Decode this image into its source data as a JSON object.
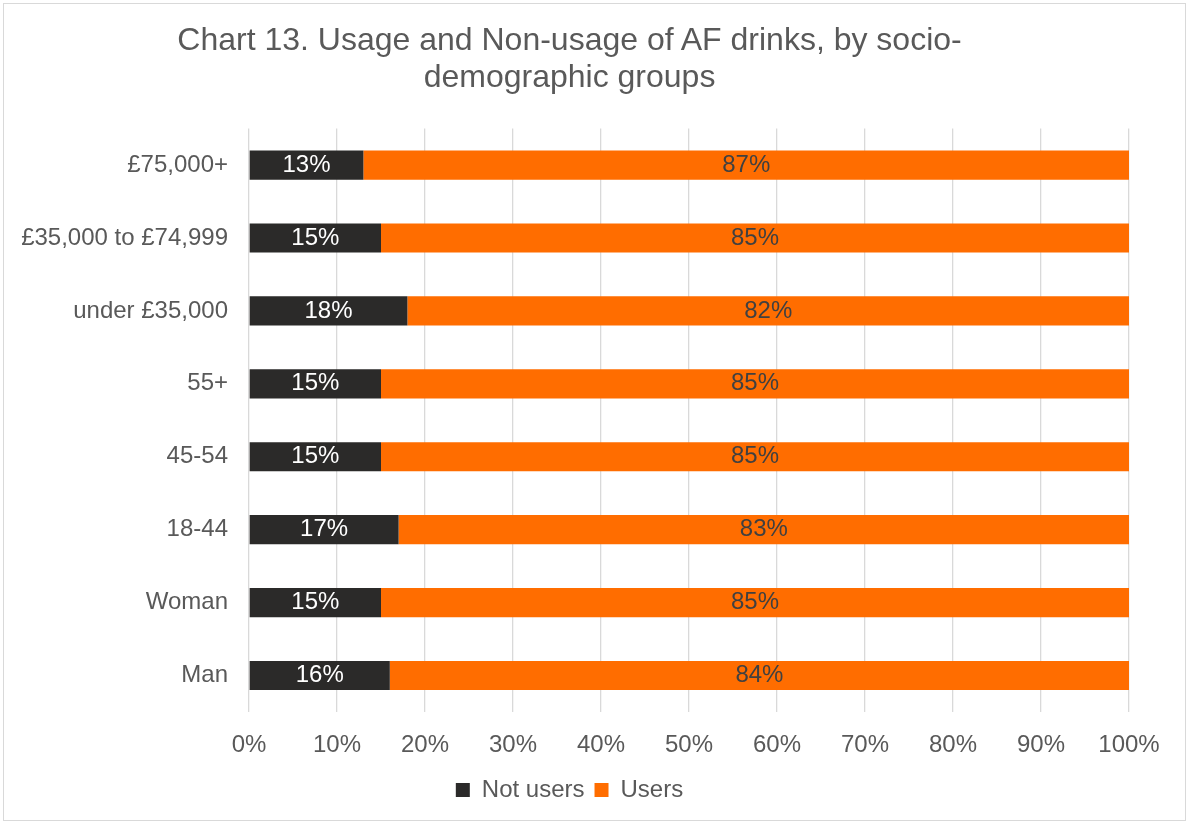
{
  "chart_data": {
    "type": "bar",
    "title": "Chart 13. Usage and Non-usage of AF drinks, by socio-demographic groups",
    "orientation": "horizontal",
    "stacked": true,
    "categories": [
      "£75,000+",
      "£35,000 to £74,999",
      "under £35,000",
      "55+",
      "45-54",
      "18-44",
      "Woman",
      "Man"
    ],
    "series": [
      {
        "name": "Not users",
        "color": "#2b2a29",
        "values": [
          13,
          15,
          18,
          15,
          15,
          17,
          15,
          16
        ],
        "value_labels": [
          "13%",
          "15%",
          "18%",
          "15%",
          "15%",
          "17%",
          "15%",
          "16%"
        ]
      },
      {
        "name": "Users",
        "color": "#ff6d00",
        "values": [
          87,
          85,
          82,
          85,
          85,
          83,
          85,
          84
        ],
        "value_labels": [
          "87%",
          "85%",
          "82%",
          "85%",
          "85%",
          "83%",
          "85%",
          "84%"
        ]
      }
    ],
    "xlim": [
      0,
      100
    ],
    "xticks": [
      {
        "value": 0,
        "label": "0%"
      },
      {
        "value": 10,
        "label": "10%"
      },
      {
        "value": 20,
        "label": "20%"
      },
      {
        "value": 30,
        "label": "30%"
      },
      {
        "value": 40,
        "label": "40%"
      },
      {
        "value": 50,
        "label": "50%"
      },
      {
        "value": 60,
        "label": "60%"
      },
      {
        "value": 70,
        "label": "70%"
      },
      {
        "value": 80,
        "label": "80%"
      },
      {
        "value": 90,
        "label": "90%"
      },
      {
        "value": 100,
        "label": "100%"
      }
    ],
    "grid": "x",
    "legend": "bottom"
  }
}
